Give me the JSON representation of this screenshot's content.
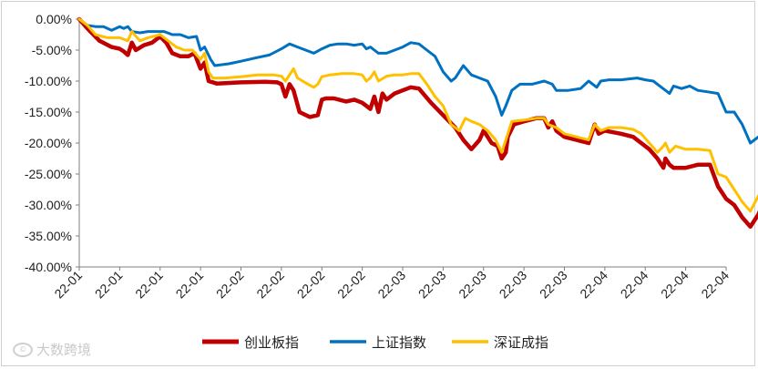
{
  "chart_data": {
    "type": "line",
    "title": "",
    "xlabel": "",
    "ylabel": "",
    "ylim": [
      -0.4,
      0.0
    ],
    "yticks": [
      "0.00%",
      "-5.00%",
      "-10.00%",
      "-15.00%",
      "-20.00%",
      "-25.00%",
      "-30.00%",
      "-35.00%",
      "-40.00%"
    ],
    "xticks": [
      "22-01",
      "22-01",
      "22-01",
      "22-01",
      "22-02",
      "22-02",
      "22-02",
      "22-02",
      "22-03",
      "22-03",
      "22-03",
      "22-03",
      "22-03",
      "22-04",
      "22-04",
      "22-04",
      "22-04"
    ],
    "legend_position": "bottom",
    "series": [
      {
        "name": "创业板指",
        "color": "#C00000",
        "points": [
          [
            0,
            0
          ],
          [
            0.2,
            -0.015
          ],
          [
            0.5,
            -0.035
          ],
          [
            0.8,
            -0.045
          ],
          [
            1.0,
            -0.048
          ],
          [
            1.1,
            -0.052
          ],
          [
            1.2,
            -0.058
          ],
          [
            1.3,
            -0.038
          ],
          [
            1.4,
            -0.05
          ],
          [
            1.6,
            -0.042
          ],
          [
            1.8,
            -0.038
          ],
          [
            2.0,
            -0.028
          ],
          [
            2.15,
            -0.038
          ],
          [
            2.3,
            -0.055
          ],
          [
            2.5,
            -0.06
          ],
          [
            2.7,
            -0.06
          ],
          [
            2.85,
            -0.055
          ],
          [
            3.0,
            -0.08
          ],
          [
            3.1,
            -0.07
          ],
          [
            3.2,
            -0.1
          ],
          [
            3.4,
            -0.104
          ],
          [
            4.0,
            -0.102
          ],
          [
            4.6,
            -0.101
          ],
          [
            4.9,
            -0.102
          ],
          [
            5.0,
            -0.105
          ],
          [
            5.1,
            -0.125
          ],
          [
            5.2,
            -0.105
          ],
          [
            5.3,
            -0.115
          ],
          [
            5.45,
            -0.15
          ],
          [
            5.7,
            -0.158
          ],
          [
            5.9,
            -0.155
          ],
          [
            6.0,
            -0.13
          ],
          [
            6.1,
            -0.128
          ],
          [
            6.3,
            -0.128
          ],
          [
            6.6,
            -0.133
          ],
          [
            6.8,
            -0.13
          ],
          [
            7.0,
            -0.135
          ],
          [
            7.1,
            -0.14
          ],
          [
            7.2,
            -0.145
          ],
          [
            7.3,
            -0.125
          ],
          [
            7.4,
            -0.15
          ],
          [
            7.5,
            -0.12
          ],
          [
            7.6,
            -0.13
          ],
          [
            7.8,
            -0.12
          ],
          [
            8.0,
            -0.115
          ],
          [
            8.2,
            -0.11
          ],
          [
            8.4,
            -0.112
          ],
          [
            8.7,
            -0.135
          ],
          [
            9.0,
            -0.155
          ],
          [
            9.3,
            -0.175
          ],
          [
            9.5,
            -0.195
          ],
          [
            9.7,
            -0.21
          ],
          [
            9.9,
            -0.195
          ],
          [
            10.0,
            -0.18
          ],
          [
            10.1,
            -0.19
          ],
          [
            10.2,
            -0.2
          ],
          [
            10.35,
            -0.205
          ],
          [
            10.45,
            -0.225
          ],
          [
            10.55,
            -0.215
          ],
          [
            10.6,
            -0.19
          ],
          [
            10.75,
            -0.17
          ],
          [
            11.0,
            -0.165
          ],
          [
            11.3,
            -0.16
          ],
          [
            11.5,
            -0.16
          ],
          [
            11.6,
            -0.175
          ],
          [
            11.7,
            -0.165
          ],
          [
            11.8,
            -0.18
          ],
          [
            12.0,
            -0.19
          ],
          [
            12.3,
            -0.195
          ],
          [
            12.6,
            -0.2
          ],
          [
            12.75,
            -0.17
          ],
          [
            12.85,
            -0.185
          ],
          [
            13.0,
            -0.18
          ],
          [
            13.4,
            -0.185
          ],
          [
            13.7,
            -0.19
          ],
          [
            13.9,
            -0.2
          ],
          [
            14.1,
            -0.21
          ],
          [
            14.3,
            -0.225
          ],
          [
            14.45,
            -0.24
          ],
          [
            14.5,
            -0.225
          ],
          [
            14.6,
            -0.235
          ],
          [
            14.7,
            -0.24
          ],
          [
            15.0,
            -0.24
          ],
          [
            15.3,
            -0.235
          ],
          [
            15.6,
            -0.235
          ],
          [
            15.8,
            -0.27
          ],
          [
            16.0,
            -0.29
          ],
          [
            16.2,
            -0.3
          ],
          [
            16.4,
            -0.32
          ],
          [
            16.6,
            -0.335
          ],
          [
            16.8,
            -0.315
          ],
          [
            16.9,
            -0.3
          ],
          [
            17.1,
            -0.315
          ]
        ]
      },
      {
        "name": "上证指数",
        "color": "#0070C0",
        "points": [
          [
            0,
            0
          ],
          [
            0.2,
            -0.01
          ],
          [
            0.4,
            -0.012
          ],
          [
            0.6,
            -0.012
          ],
          [
            0.8,
            -0.018
          ],
          [
            1.0,
            -0.012
          ],
          [
            1.1,
            -0.015
          ],
          [
            1.2,
            -0.012
          ],
          [
            1.3,
            -0.02
          ],
          [
            1.5,
            -0.022
          ],
          [
            1.7,
            -0.02
          ],
          [
            1.9,
            -0.02
          ],
          [
            2.1,
            -0.02
          ],
          [
            2.3,
            -0.025
          ],
          [
            2.5,
            -0.025
          ],
          [
            2.7,
            -0.03
          ],
          [
            2.9,
            -0.028
          ],
          [
            3.0,
            -0.05
          ],
          [
            3.1,
            -0.045
          ],
          [
            3.25,
            -0.065
          ],
          [
            3.35,
            -0.075
          ],
          [
            3.7,
            -0.072
          ],
          [
            4.0,
            -0.068
          ],
          [
            4.4,
            -0.062
          ],
          [
            4.7,
            -0.058
          ],
          [
            5.0,
            -0.048
          ],
          [
            5.2,
            -0.04
          ],
          [
            5.4,
            -0.045
          ],
          [
            5.6,
            -0.05
          ],
          [
            5.8,
            -0.055
          ],
          [
            6.0,
            -0.048
          ],
          [
            6.2,
            -0.042
          ],
          [
            6.4,
            -0.04
          ],
          [
            6.6,
            -0.04
          ],
          [
            6.8,
            -0.042
          ],
          [
            7.0,
            -0.04
          ],
          [
            7.1,
            -0.048
          ],
          [
            7.2,
            -0.045
          ],
          [
            7.3,
            -0.05
          ],
          [
            7.4,
            -0.055
          ],
          [
            7.6,
            -0.055
          ],
          [
            7.8,
            -0.05
          ],
          [
            8.0,
            -0.045
          ],
          [
            8.2,
            -0.038
          ],
          [
            8.4,
            -0.04
          ],
          [
            8.6,
            -0.05
          ],
          [
            8.8,
            -0.06
          ],
          [
            9.0,
            -0.085
          ],
          [
            9.2,
            -0.1
          ],
          [
            9.3,
            -0.095
          ],
          [
            9.5,
            -0.075
          ],
          [
            9.7,
            -0.09
          ],
          [
            9.9,
            -0.095
          ],
          [
            10.1,
            -0.1
          ],
          [
            10.3,
            -0.125
          ],
          [
            10.45,
            -0.155
          ],
          [
            10.55,
            -0.14
          ],
          [
            10.7,
            -0.115
          ],
          [
            10.9,
            -0.105
          ],
          [
            11.2,
            -0.105
          ],
          [
            11.5,
            -0.1
          ],
          [
            11.7,
            -0.105
          ],
          [
            11.8,
            -0.115
          ],
          [
            12.1,
            -0.115
          ],
          [
            12.4,
            -0.112
          ],
          [
            12.6,
            -0.1
          ],
          [
            12.8,
            -0.11
          ],
          [
            12.9,
            -0.1
          ],
          [
            13.1,
            -0.098
          ],
          [
            13.4,
            -0.098
          ],
          [
            13.8,
            -0.095
          ],
          [
            14.0,
            -0.098
          ],
          [
            14.2,
            -0.1
          ],
          [
            14.4,
            -0.11
          ],
          [
            14.6,
            -0.12
          ],
          [
            14.7,
            -0.108
          ],
          [
            14.9,
            -0.112
          ],
          [
            15.1,
            -0.108
          ],
          [
            15.3,
            -0.115
          ],
          [
            15.6,
            -0.118
          ],
          [
            15.8,
            -0.12
          ],
          [
            16.0,
            -0.15
          ],
          [
            16.2,
            -0.15
          ],
          [
            16.4,
            -0.17
          ],
          [
            16.6,
            -0.2
          ],
          [
            16.8,
            -0.19
          ],
          [
            17.1,
            -0.18
          ]
        ]
      },
      {
        "name": "深证成指",
        "color": "#FFC000",
        "points": [
          [
            0,
            0
          ],
          [
            0.2,
            -0.01
          ],
          [
            0.4,
            -0.025
          ],
          [
            0.7,
            -0.03
          ],
          [
            1.0,
            -0.03
          ],
          [
            1.2,
            -0.035
          ],
          [
            1.3,
            -0.02
          ],
          [
            1.5,
            -0.035
          ],
          [
            1.7,
            -0.03
          ],
          [
            2.0,
            -0.025
          ],
          [
            2.2,
            -0.035
          ],
          [
            2.4,
            -0.045
          ],
          [
            2.6,
            -0.05
          ],
          [
            2.8,
            -0.05
          ],
          [
            3.0,
            -0.065
          ],
          [
            3.1,
            -0.055
          ],
          [
            3.2,
            -0.085
          ],
          [
            3.3,
            -0.095
          ],
          [
            3.6,
            -0.095
          ],
          [
            4.0,
            -0.093
          ],
          [
            4.4,
            -0.09
          ],
          [
            4.8,
            -0.09
          ],
          [
            5.0,
            -0.092
          ],
          [
            5.1,
            -0.1
          ],
          [
            5.2,
            -0.09
          ],
          [
            5.3,
            -0.08
          ],
          [
            5.4,
            -0.095
          ],
          [
            5.6,
            -0.103
          ],
          [
            5.8,
            -0.11
          ],
          [
            5.9,
            -0.105
          ],
          [
            6.0,
            -0.093
          ],
          [
            6.2,
            -0.09
          ],
          [
            6.5,
            -0.088
          ],
          [
            6.8,
            -0.088
          ],
          [
            7.0,
            -0.09
          ],
          [
            7.1,
            -0.1
          ],
          [
            7.2,
            -0.095
          ],
          [
            7.3,
            -0.085
          ],
          [
            7.4,
            -0.1
          ],
          [
            7.6,
            -0.092
          ],
          [
            7.8,
            -0.09
          ],
          [
            8.0,
            -0.09
          ],
          [
            8.2,
            -0.088
          ],
          [
            8.4,
            -0.088
          ],
          [
            8.6,
            -0.105
          ],
          [
            8.8,
            -0.125
          ],
          [
            9.0,
            -0.14
          ],
          [
            9.2,
            -0.17
          ],
          [
            9.4,
            -0.18
          ],
          [
            9.55,
            -0.16
          ],
          [
            9.7,
            -0.165
          ],
          [
            9.9,
            -0.17
          ],
          [
            10.1,
            -0.18
          ],
          [
            10.3,
            -0.195
          ],
          [
            10.45,
            -0.215
          ],
          [
            10.55,
            -0.195
          ],
          [
            10.7,
            -0.165
          ],
          [
            11.0,
            -0.163
          ],
          [
            11.3,
            -0.16
          ],
          [
            11.5,
            -0.16
          ],
          [
            11.6,
            -0.17
          ],
          [
            11.8,
            -0.175
          ],
          [
            12.0,
            -0.185
          ],
          [
            12.3,
            -0.19
          ],
          [
            12.6,
            -0.195
          ],
          [
            12.75,
            -0.17
          ],
          [
            12.9,
            -0.18
          ],
          [
            13.1,
            -0.175
          ],
          [
            13.4,
            -0.175
          ],
          [
            13.7,
            -0.178
          ],
          [
            13.9,
            -0.185
          ],
          [
            14.1,
            -0.2
          ],
          [
            14.3,
            -0.215
          ],
          [
            14.45,
            -0.205
          ],
          [
            14.5,
            -0.2
          ],
          [
            14.6,
            -0.215
          ],
          [
            14.75,
            -0.205
          ],
          [
            15.0,
            -0.21
          ],
          [
            15.3,
            -0.21
          ],
          [
            15.6,
            -0.212
          ],
          [
            15.8,
            -0.25
          ],
          [
            16.0,
            -0.255
          ],
          [
            16.2,
            -0.275
          ],
          [
            16.4,
            -0.295
          ],
          [
            16.6,
            -0.31
          ],
          [
            16.8,
            -0.285
          ],
          [
            17.1,
            -0.285
          ]
        ]
      }
    ]
  },
  "watermark": {
    "text": "大数跨境",
    "logo_text": "©"
  }
}
